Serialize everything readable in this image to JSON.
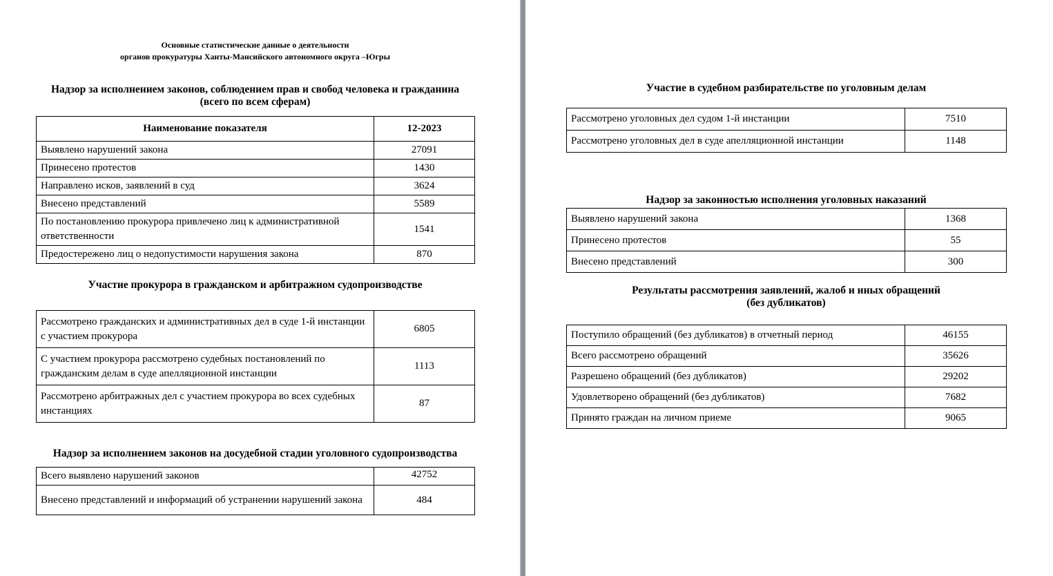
{
  "colors": {
    "page_background": "#ffffff",
    "text": "#000000",
    "table_border": "#000000",
    "page_divider": "#8b9095"
  },
  "document_title": {
    "line1": "Основные статистические данные о деятельности",
    "line2": "органов прокуратуры Ханты-Мансийского автономного округа –Югры"
  },
  "left_page": {
    "sections": [
      {
        "heading": "Надзор за исполнением законов, соблюдением прав и свобод человека и гражданина",
        "heading_line2": "(всего по всем сферам)",
        "table": {
          "header_label": "Наименование показателя",
          "header_value": "12-2023",
          "rows": [
            {
              "label": "Выявлено нарушений закона",
              "value": "27091"
            },
            {
              "label": "Принесено протестов",
              "value": "1430"
            },
            {
              "label": "Направлено исков, заявлений в суд",
              "value": "3624"
            },
            {
              "label": "Внесено представлений",
              "value": "5589"
            },
            {
              "label": "По постановлению прокурора привлечено лиц к административной ответственности",
              "value": "1541"
            },
            {
              "label": "Предостережено лиц о недопустимости нарушения закона",
              "value": "870"
            }
          ]
        }
      },
      {
        "heading": "Участие прокурора в гражданском и арбитражном судопроизводстве",
        "table": {
          "rows": [
            {
              "label": "Рассмотрено гражданских и административных дел в суде 1-й инстанции с участием прокурора",
              "value": "6805"
            },
            {
              "label": "С участием прокурора рассмотрено судебных постановлений по гражданским делам в суде апелляционной инстанции",
              "value": "1113"
            },
            {
              "label": "Рассмотрено арбитражных дел с участием прокурора во всех судебных инстанциях",
              "value": "87"
            }
          ]
        }
      },
      {
        "heading": "Надзор за исполнением законов на досудебной стадии уголовного судопроизводства",
        "table": {
          "rows": [
            {
              "label": "Всего выявлено нарушений законов",
              "value": "42752"
            },
            {
              "label": "Внесено представлений и информаций об устранении нарушений закона",
              "value": "484"
            }
          ]
        }
      }
    ]
  },
  "right_page": {
    "sections": [
      {
        "heading": "Участие в судебном разбирательстве по уголовным делам",
        "table": {
          "rows": [
            {
              "label": "Рассмотрено уголовных дел судом 1-й инстанции",
              "value": "7510"
            },
            {
              "label": "Рассмотрено уголовных дел в суде апелляционной инстанции",
              "value": "1148"
            }
          ]
        }
      },
      {
        "heading": "Надзор за законностью исполнения уголовных наказаний",
        "table": {
          "rows": [
            {
              "label": "Выявлено нарушений закона",
              "value": "1368"
            },
            {
              "label": "Принесено протестов",
              "value": "55"
            },
            {
              "label": "Внесено представлений",
              "value": "300"
            }
          ]
        }
      },
      {
        "heading": "Результаты рассмотрения заявлений, жалоб и иных обращений",
        "heading_line2": "(без дубликатов)",
        "table": {
          "rows": [
            {
              "label": "Поступило обращений (без дубликатов) в отчетный период",
              "value": "46155"
            },
            {
              "label": "Всего рассмотрено обращений",
              "value": "35626"
            },
            {
              "label": "Разрешено обращений (без дубликатов)",
              "value": "29202"
            },
            {
              "label": "Удовлетворено обращений (без дубликатов)",
              "value": "7682"
            },
            {
              "label": "Принято граждан на личном приеме",
              "value": "9065"
            }
          ]
        }
      }
    ]
  }
}
